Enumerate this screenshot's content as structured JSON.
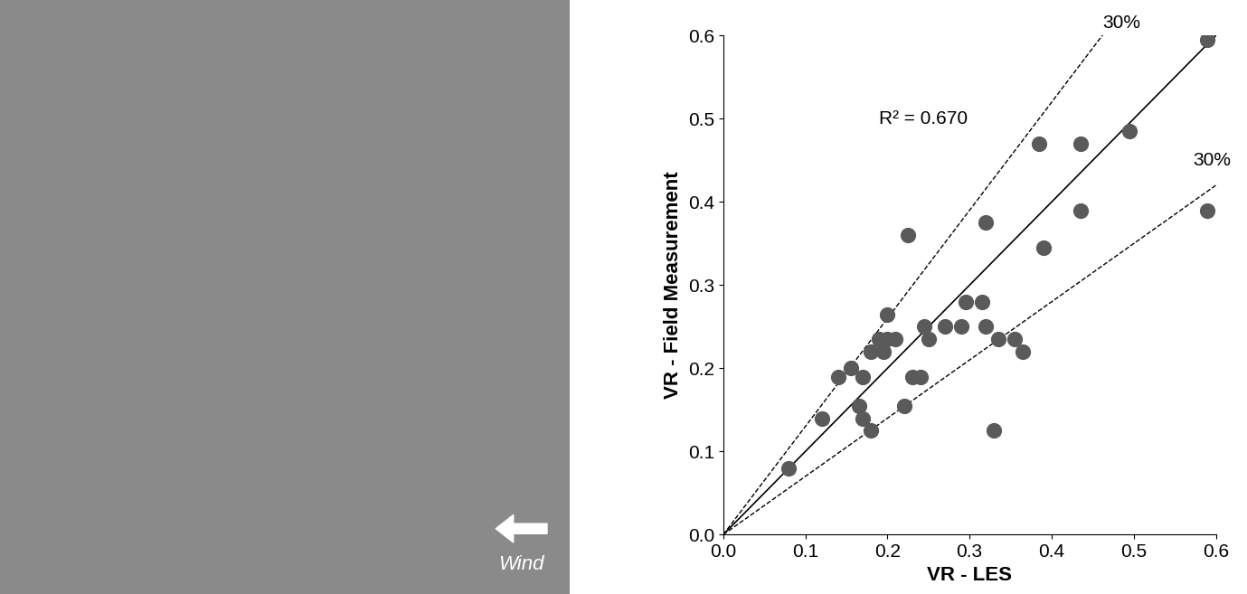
{
  "image_panel": {
    "wind_label": "Wind"
  },
  "chart_data": {
    "type": "scatter",
    "xlabel": "VR - LES",
    "ylabel": "VR - Field Measurement",
    "annotation": "R² = 0.670",
    "color": "#5a5a5a",
    "marker": "o",
    "x": [
      0.08,
      0.12,
      0.14,
      0.155,
      0.165,
      0.17,
      0.17,
      0.18,
      0.18,
      0.19,
      0.195,
      0.2,
      0.2,
      0.21,
      0.22,
      0.225,
      0.23,
      0.24,
      0.245,
      0.25,
      0.27,
      0.29,
      0.295,
      0.315,
      0.32,
      0.32,
      0.33,
      0.335,
      0.355,
      0.365,
      0.385,
      0.39,
      0.435,
      0.435,
      0.495,
      0.59,
      0.59
    ],
    "values": [
      0.08,
      0.14,
      0.19,
      0.2,
      0.155,
      0.14,
      0.19,
      0.125,
      0.22,
      0.235,
      0.22,
      0.265,
      0.235,
      0.235,
      0.155,
      0.36,
      0.19,
      0.19,
      0.25,
      0.235,
      0.25,
      0.25,
      0.28,
      0.28,
      0.25,
      0.375,
      0.125,
      0.235,
      0.235,
      0.22,
      0.47,
      0.345,
      0.47,
      0.39,
      0.485,
      0.595,
      0.39
    ],
    "reference_lines": [
      {
        "slope": 1,
        "line_style": "solid"
      },
      {
        "slope": 1.3,
        "line_style": "dashed",
        "label": "30%"
      },
      {
        "slope": 0.7,
        "line_style": "dashed",
        "label": "30%"
      }
    ],
    "xlim": [
      0.0,
      0.6
    ],
    "ylim": [
      0.0,
      0.6
    ],
    "xticks": [
      0.0,
      0.1,
      0.2,
      0.3,
      0.4,
      0.5,
      0.6
    ],
    "yticks": [
      0.0,
      0.1,
      0.2,
      0.3,
      0.4,
      0.5,
      0.6
    ],
    "grid": false
  }
}
